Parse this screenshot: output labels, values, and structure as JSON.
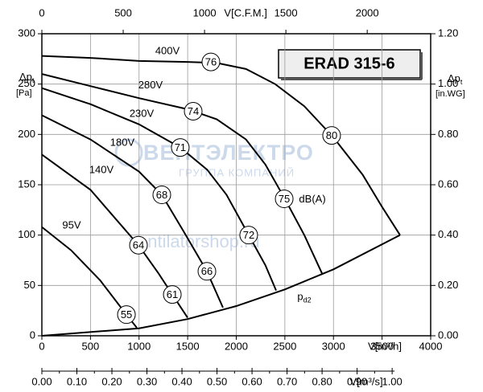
{
  "chart_data": {
    "type": "line",
    "title": "ERAD 315-6",
    "x_label": "V[m³/h]",
    "xlim": [
      0,
      4000
    ],
    "xticks": [
      0,
      500,
      1000,
      1500,
      2000,
      2500,
      3000,
      3500,
      4000
    ],
    "x2_label": "V[C.F.M.]",
    "x2lim": [
      0,
      2390
    ],
    "x2ticks": [
      0,
      500,
      1000,
      1500,
      2000
    ],
    "x3_label": "V[m³/s]",
    "x3lim": [
      0,
      1.11
    ],
    "x3ticks": [
      {
        "value": 0,
        "label": "0.00"
      },
      {
        "value": 0.1,
        "label": "0.10"
      },
      {
        "value": 0.2,
        "label": "0.20"
      },
      {
        "value": 0.3,
        "label": "0.30"
      },
      {
        "value": 0.4,
        "label": "0.40"
      },
      {
        "value": 0.5,
        "label": "0.50"
      },
      {
        "value": 0.6,
        "label": "0.60"
      },
      {
        "value": 0.7,
        "label": "0.70"
      },
      {
        "value": 0.8,
        "label": "0.80"
      },
      {
        "value": 0.9,
        "label": "0.90"
      },
      {
        "value": 1,
        "label": "1.00"
      }
    ],
    "y_label": "Δp",
    "y_label_sub": "t",
    "y_unit": "[Pa]",
    "ylim": [
      0,
      300
    ],
    "yticks": [
      0,
      50,
      100,
      150,
      200,
      250,
      300
    ],
    "y2_label": "Δp",
    "y2_label_sub": "t",
    "y2_unit": "[in.WG]",
    "y2lim": [
      0,
      1.2
    ],
    "y2ticks": [
      {
        "value": 0,
        "label": "0.00"
      },
      {
        "value": 0.2,
        "label": "0.20"
      },
      {
        "value": 0.4,
        "label": "0.40"
      },
      {
        "value": 0.6,
        "label": "0.60"
      },
      {
        "value": 0.8,
        "label": "0.80"
      },
      {
        "value": 1,
        "label": "1.00"
      },
      {
        "value": 1.2,
        "label": "1.20"
      }
    ],
    "grid": true,
    "series": [
      {
        "name": "400V",
        "color": "#000000",
        "label_x": 1292,
        "label_y": 282,
        "x": [
          0,
          500,
          1000,
          1500,
          1800,
          2100,
          2400,
          2700,
          3000,
          3300,
          3500,
          3685
        ],
        "values": [
          278,
          276,
          273,
          272,
          271,
          265,
          250,
          228,
          197,
          160,
          128,
          100
        ]
      },
      {
        "name": "280V",
        "color": "#000000",
        "label_x": 1118,
        "label_y": 248,
        "x": [
          0,
          500,
          1000,
          1500,
          1800,
          2100,
          2300,
          2500,
          2700,
          2882
        ],
        "values": [
          260,
          248,
          236,
          225,
          215,
          195,
          170,
          136,
          100,
          62
        ]
      },
      {
        "name": "230V",
        "color": "#000000",
        "label_x": 1027,
        "label_y": 220,
        "x": [
          0,
          500,
          1000,
          1424,
          1700,
          1900,
          2128,
          2300,
          2410
        ],
        "values": [
          246,
          230,
          210,
          187,
          165,
          140,
          100,
          70,
          45
        ]
      },
      {
        "name": "180V",
        "color": "#000000",
        "label_x": 828,
        "label_y": 191,
        "x": [
          0,
          500,
          1000,
          1234,
          1450,
          1698,
          1863
        ],
        "values": [
          219,
          195,
          163,
          140,
          105,
          64,
          28
        ]
      },
      {
        "name": "140V",
        "color": "#000000",
        "label_x": 613,
        "label_y": 164,
        "x": [
          0,
          500,
          994,
          1200,
          1342,
          1499
        ],
        "values": [
          180,
          145,
          90,
          62,
          41,
          18
        ]
      },
      {
        "name": "95V",
        "color": "#000000",
        "label_x": 306,
        "label_y": 109,
        "x": [
          0,
          300,
          600,
          870,
          977
        ],
        "values": [
          108,
          85,
          55,
          21,
          8
        ]
      },
      {
        "name": "p",
        "subscript": "d2",
        "color": "#000000",
        "label_x": 2700,
        "label_y": 38,
        "x": [
          0,
          1000,
          1500,
          2000,
          2500,
          3000,
          3685
        ],
        "values": [
          0,
          7.4,
          16.6,
          29.5,
          46,
          66,
          100
        ]
      }
    ],
    "annotations": [
      {
        "text": 76,
        "x": 1739,
        "y": 272,
        "circled": true
      },
      {
        "text": 74,
        "x": 1557,
        "y": 223,
        "circled": true
      },
      {
        "text": 80,
        "x": 2981,
        "y": 199,
        "circled": true
      },
      {
        "text": 71,
        "x": 1424,
        "y": 187,
        "circled": true
      },
      {
        "text": 75,
        "x": 2493,
        "y": 136,
        "circled": true
      },
      {
        "text": "dB(A)",
        "x": 2783,
        "y": 136,
        "circled": false
      },
      {
        "text": 68,
        "x": 1234,
        "y": 140,
        "circled": true
      },
      {
        "text": 72,
        "x": 2128,
        "y": 100,
        "circled": true
      },
      {
        "text": 64,
        "x": 994,
        "y": 90,
        "circled": true
      },
      {
        "text": 66,
        "x": 1698,
        "y": 64,
        "circled": true
      },
      {
        "text": 61,
        "x": 1342,
        "y": 41,
        "circled": true
      },
      {
        "text": 55,
        "x": 870,
        "y": 21,
        "circled": true
      }
    ],
    "watermark": [
      "ВЕНТЭЛЕКТРО",
      "ГРУППА КОМПАНИЙ",
      "ventilatorshop.ru"
    ]
  }
}
